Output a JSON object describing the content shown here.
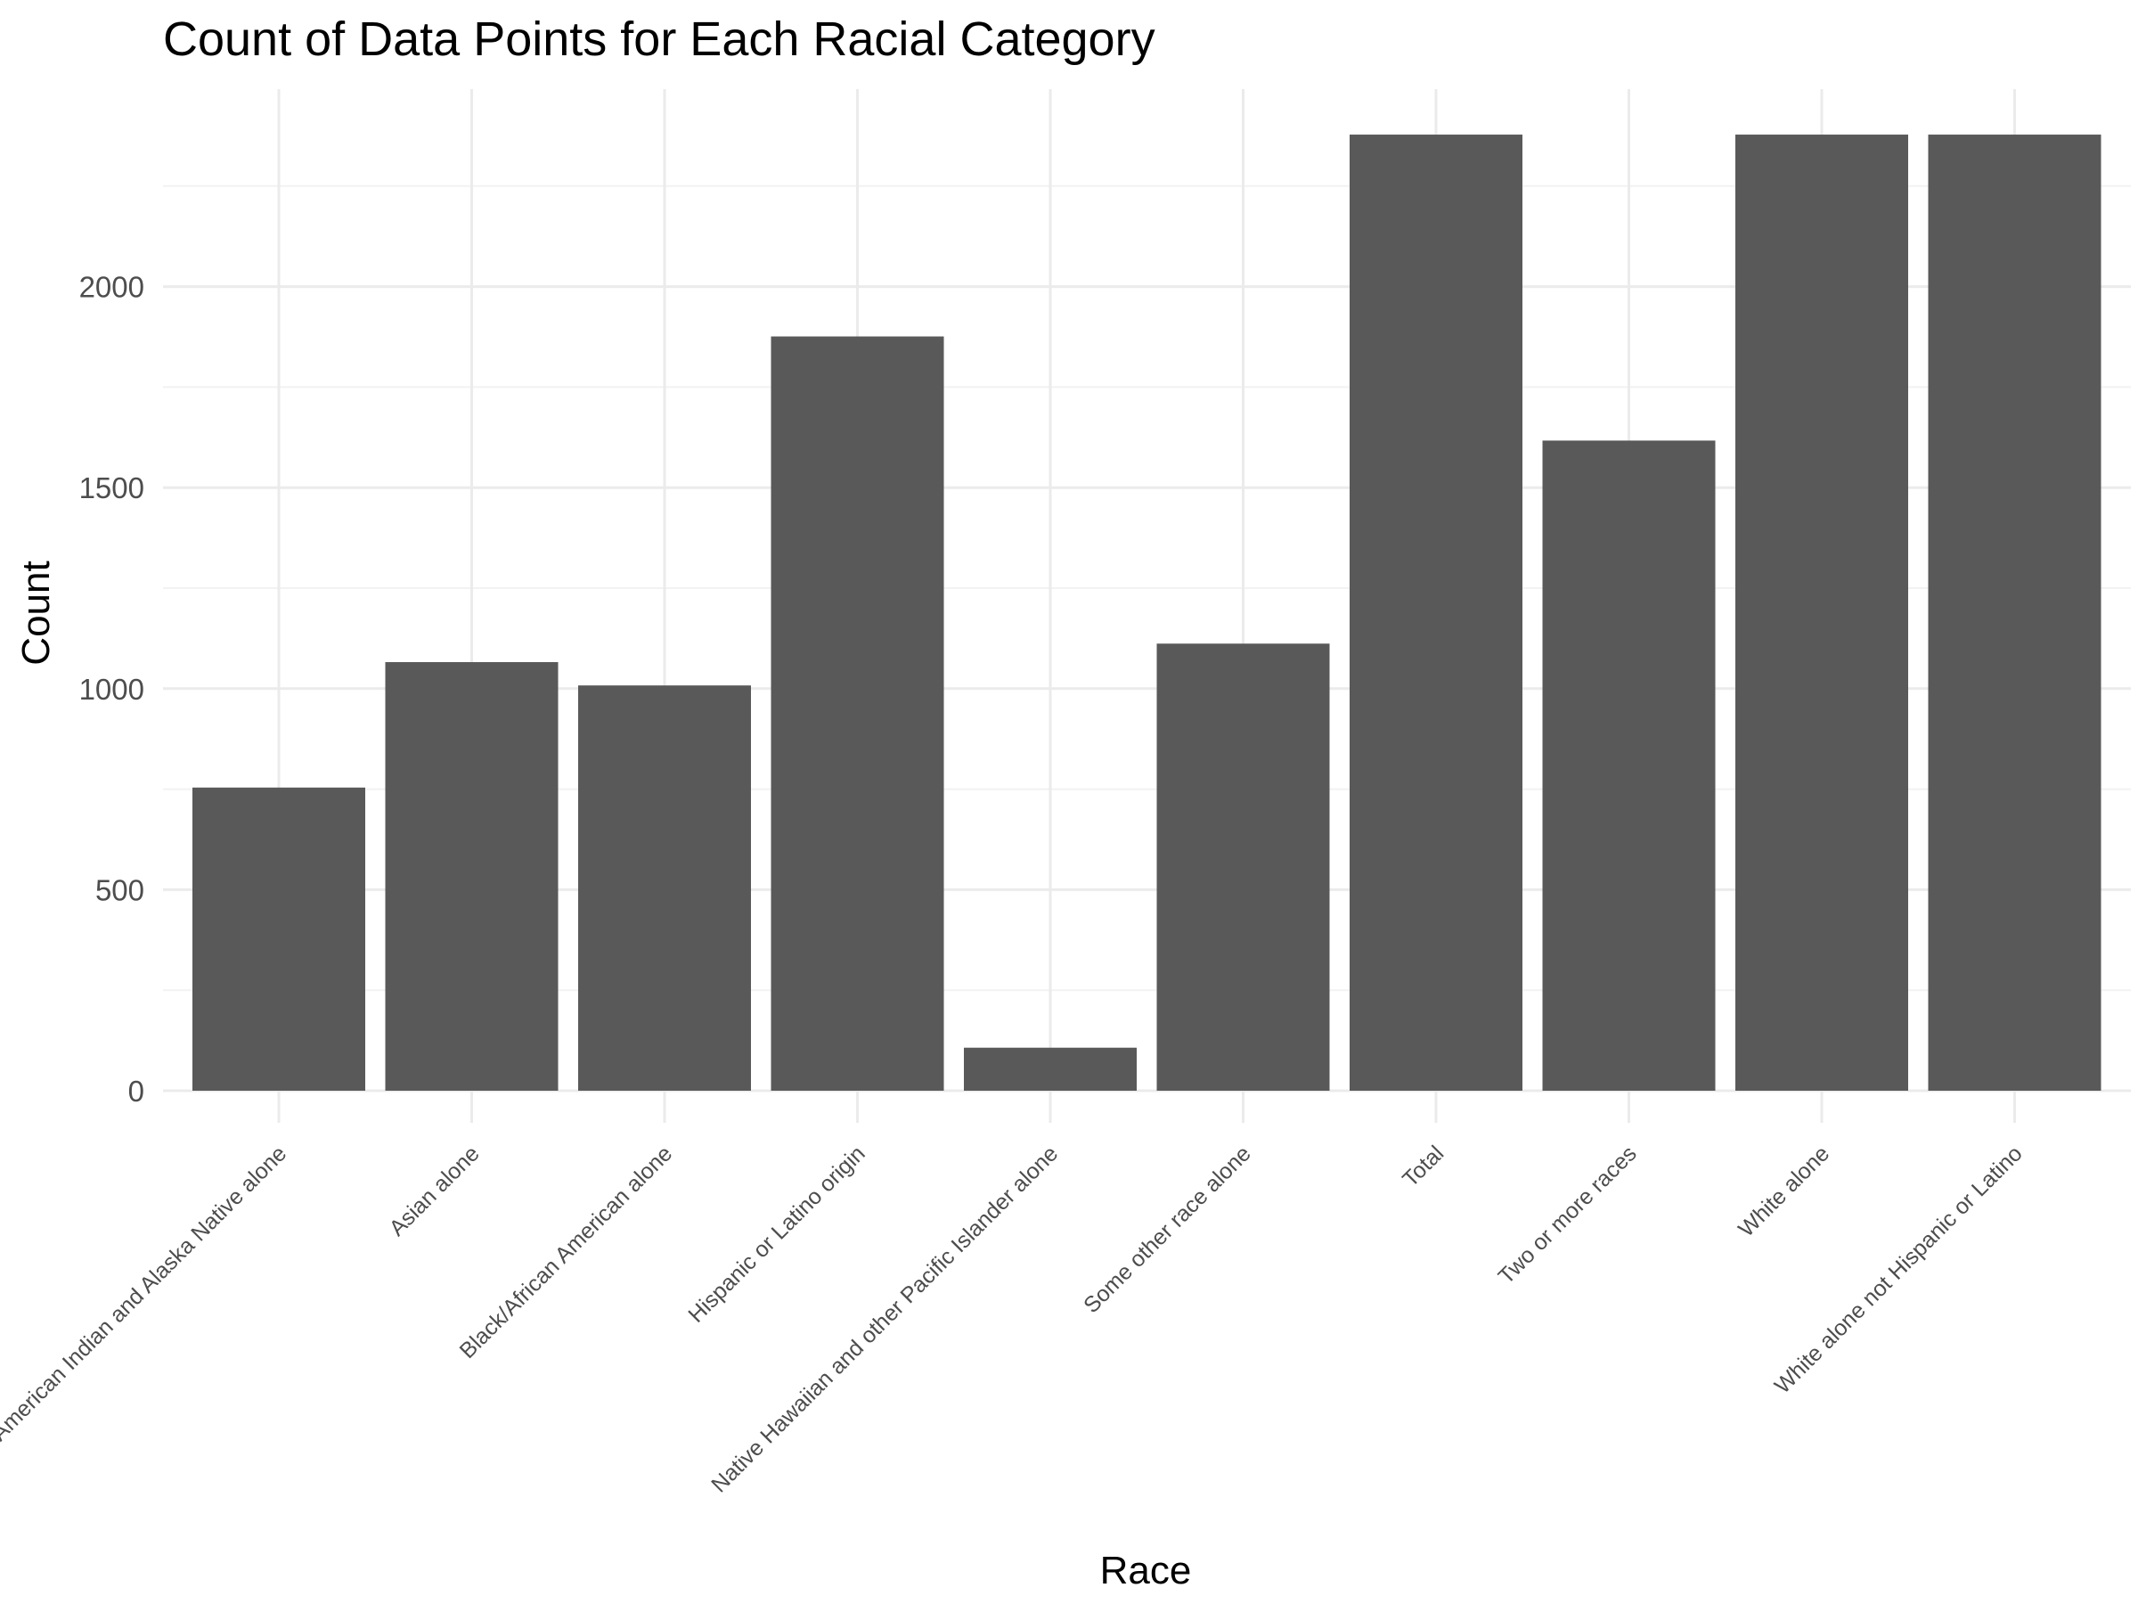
{
  "chart_data": {
    "type": "bar",
    "title": "Count of Data Points for Each Racial Category",
    "xlabel": "Race",
    "ylabel": "Count",
    "categories": [
      "American Indian and Alaska Native alone",
      "Asian alone",
      "Black/African American alone",
      "Hispanic or Latino origin",
      "Native Hawaiian and other Pacific Islander alone",
      "Some other race alone",
      "Total",
      "Two or more races",
      "White alone",
      "White alone not Hispanic or Latino"
    ],
    "values": [
      754,
      1066,
      1008,
      1876,
      107,
      1112,
      2378,
      1617,
      2378,
      2378
    ],
    "ylim": [
      0,
      2500
    ],
    "yticks": [
      0,
      500,
      1000,
      1500,
      2000
    ],
    "grid": true,
    "bar_color": "#595959",
    "theme": "minimal"
  }
}
